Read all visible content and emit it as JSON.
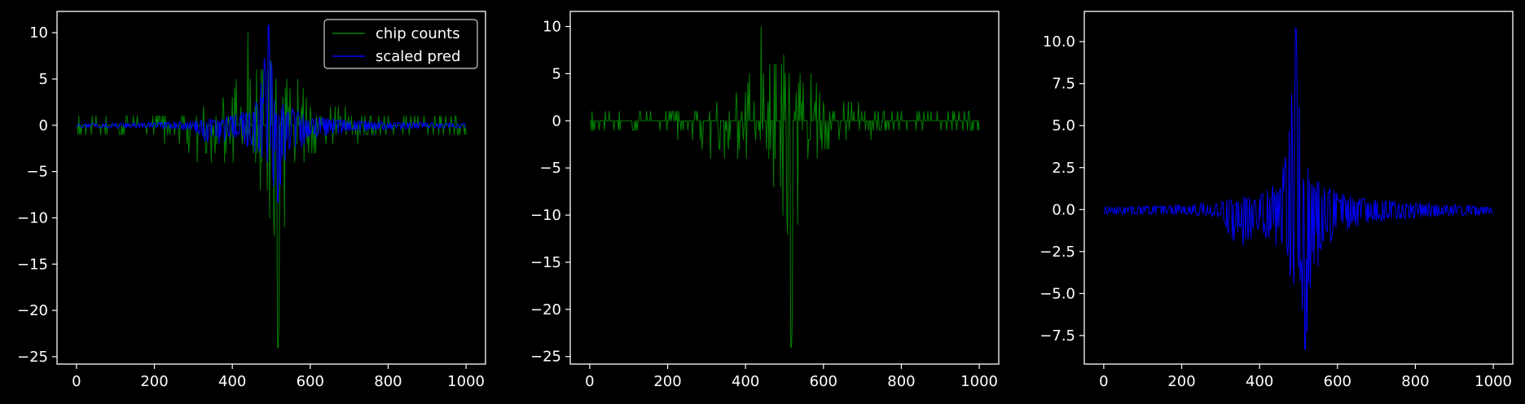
{
  "colors": {
    "background": "#000000",
    "axes": "#ffffff",
    "chip": "#008000",
    "pred": "#0000ff"
  },
  "chart_data": [
    {
      "type": "line",
      "xlim": [
        -50,
        1050
      ],
      "ylim": [
        -25.8,
        12.3
      ],
      "xticks": [
        0,
        200,
        400,
        600,
        800,
        1000
      ],
      "yticks": [
        -25,
        -20,
        -15,
        -10,
        -5,
        0,
        5,
        10
      ],
      "grid": false,
      "legend": {
        "placement": "top-right",
        "entries": [
          "chip counts",
          "scaled pred"
        ]
      },
      "series": [
        {
          "name": "chip counts",
          "color_key": "chip",
          "x_range": [
            0,
            1000
          ],
          "max": 10,
          "min": -24,
          "envelope": [
            {
              "x": 0,
              "y": 1
            },
            {
              "x": 100,
              "y": 1
            },
            {
              "x": 200,
              "y": 1
            },
            {
              "x": 260,
              "y": 3
            },
            {
              "x": 330,
              "y": 2
            },
            {
              "x": 400,
              "y": 4
            },
            {
              "x": 440,
              "y": 10
            },
            {
              "x": 470,
              "y": 8
            },
            {
              "x": 490,
              "y": 10
            },
            {
              "x": 510,
              "y": 6
            },
            {
              "x": 550,
              "y": 9
            },
            {
              "x": 600,
              "y": 3
            },
            {
              "x": 700,
              "y": 2
            },
            {
              "x": 800,
              "y": 1
            },
            {
              "x": 1000,
              "y": 1
            }
          ],
          "envelope_low": [
            {
              "x": 0,
              "y": -1
            },
            {
              "x": 100,
              "y": -1
            },
            {
              "x": 200,
              "y": -1
            },
            {
              "x": 280,
              "y": -3
            },
            {
              "x": 330,
              "y": -5
            },
            {
              "x": 400,
              "y": -4
            },
            {
              "x": 460,
              "y": -6
            },
            {
              "x": 490,
              "y": -8
            },
            {
              "x": 517,
              "y": -24
            },
            {
              "x": 540,
              "y": -7
            },
            {
              "x": 560,
              "y": -6
            },
            {
              "x": 600,
              "y": -3
            },
            {
              "x": 700,
              "y": -2
            },
            {
              "x": 800,
              "y": -1
            },
            {
              "x": 1000,
              "y": -1
            }
          ]
        },
        {
          "name": "scaled pred",
          "color_key": "pred",
          "x_range": [
            0,
            1000
          ],
          "max": 10.8,
          "min": -8.3,
          "envelope": [
            {
              "x": 0,
              "y": 0.2
            },
            {
              "x": 200,
              "y": 0.3
            },
            {
              "x": 300,
              "y": 0.5
            },
            {
              "x": 400,
              "y": 1.0
            },
            {
              "x": 440,
              "y": 2.0
            },
            {
              "x": 470,
              "y": 3.5
            },
            {
              "x": 493,
              "y": 10.8
            },
            {
              "x": 510,
              "y": 3.0
            },
            {
              "x": 550,
              "y": 2.0
            },
            {
              "x": 600,
              "y": 1.0
            },
            {
              "x": 700,
              "y": 0.6
            },
            {
              "x": 800,
              "y": 0.4
            },
            {
              "x": 1000,
              "y": 0.2
            }
          ],
          "envelope_low": [
            {
              "x": 0,
              "y": -0.3
            },
            {
              "x": 200,
              "y": -0.3
            },
            {
              "x": 300,
              "y": -0.5
            },
            {
              "x": 345,
              "y": -2.6
            },
            {
              "x": 400,
              "y": -1.2
            },
            {
              "x": 460,
              "y": -3.0
            },
            {
              "x": 495,
              "y": -5.0
            },
            {
              "x": 517,
              "y": -8.3
            },
            {
              "x": 540,
              "y": -4.0
            },
            {
              "x": 600,
              "y": -1.5
            },
            {
              "x": 700,
              "y": -0.8
            },
            {
              "x": 800,
              "y": -0.5
            },
            {
              "x": 1000,
              "y": -0.3
            }
          ]
        }
      ]
    },
    {
      "type": "line",
      "xlim": [
        -50,
        1050
      ],
      "ylim": [
        -25.8,
        11.6
      ],
      "xticks": [
        0,
        200,
        400,
        600,
        800,
        1000
      ],
      "yticks": [
        -25,
        -20,
        -15,
        -10,
        -5,
        0,
        5,
        10
      ],
      "grid": false,
      "series": [
        {
          "color_key": "chip",
          "x_range": [
            0,
            1000
          ],
          "max": 10,
          "min": -24,
          "envelope": [
            {
              "x": 0,
              "y": 1
            },
            {
              "x": 100,
              "y": 1
            },
            {
              "x": 200,
              "y": 1
            },
            {
              "x": 260,
              "y": 3
            },
            {
              "x": 330,
              "y": 2
            },
            {
              "x": 400,
              "y": 4
            },
            {
              "x": 440,
              "y": 10
            },
            {
              "x": 470,
              "y": 8
            },
            {
              "x": 490,
              "y": 10
            },
            {
              "x": 510,
              "y": 6
            },
            {
              "x": 550,
              "y": 9
            },
            {
              "x": 600,
              "y": 3
            },
            {
              "x": 700,
              "y": 2
            },
            {
              "x": 800,
              "y": 1
            },
            {
              "x": 1000,
              "y": 1
            }
          ],
          "envelope_low": [
            {
              "x": 0,
              "y": -1
            },
            {
              "x": 100,
              "y": -1
            },
            {
              "x": 200,
              "y": -1
            },
            {
              "x": 280,
              "y": -3
            },
            {
              "x": 330,
              "y": -5
            },
            {
              "x": 400,
              "y": -4
            },
            {
              "x": 460,
              "y": -6
            },
            {
              "x": 490,
              "y": -8
            },
            {
              "x": 517,
              "y": -24
            },
            {
              "x": 540,
              "y": -7
            },
            {
              "x": 560,
              "y": -6
            },
            {
              "x": 600,
              "y": -3
            },
            {
              "x": 700,
              "y": -2
            },
            {
              "x": 800,
              "y": -1
            },
            {
              "x": 1000,
              "y": -1
            }
          ]
        }
      ]
    },
    {
      "type": "line",
      "xlim": [
        -50,
        1050
      ],
      "ylim": [
        -9.2,
        11.8
      ],
      "xticks": [
        0,
        200,
        400,
        600,
        800,
        1000
      ],
      "yticks": [
        -7.5,
        -5.0,
        -2.5,
        0.0,
        2.5,
        5.0,
        7.5,
        10.0
      ],
      "ytick_labels": [
        "−7.5",
        "−5.0",
        "−2.5",
        "0.0",
        "2.5",
        "5.0",
        "7.5",
        "10.0"
      ],
      "grid": false,
      "series": [
        {
          "color_key": "pred",
          "x_range": [
            0,
            1000
          ],
          "max": 10.8,
          "min": -8.3,
          "envelope": [
            {
              "x": 0,
              "y": 0.2
            },
            {
              "x": 200,
              "y": 0.3
            },
            {
              "x": 300,
              "y": 0.5
            },
            {
              "x": 400,
              "y": 1.0
            },
            {
              "x": 440,
              "y": 2.0
            },
            {
              "x": 470,
              "y": 3.5
            },
            {
              "x": 493,
              "y": 10.8
            },
            {
              "x": 510,
              "y": 3.0
            },
            {
              "x": 550,
              "y": 2.0
            },
            {
              "x": 600,
              "y": 1.0
            },
            {
              "x": 700,
              "y": 0.6
            },
            {
              "x": 800,
              "y": 0.4
            },
            {
              "x": 1000,
              "y": 0.2
            }
          ],
          "envelope_low": [
            {
              "x": 0,
              "y": -0.3
            },
            {
              "x": 200,
              "y": -0.3
            },
            {
              "x": 300,
              "y": -0.5
            },
            {
              "x": 345,
              "y": -2.6
            },
            {
              "x": 400,
              "y": -1.2
            },
            {
              "x": 460,
              "y": -3.0
            },
            {
              "x": 495,
              "y": -5.0
            },
            {
              "x": 517,
              "y": -8.3
            },
            {
              "x": 540,
              "y": -4.0
            },
            {
              "x": 600,
              "y": -1.5
            },
            {
              "x": 700,
              "y": -0.8
            },
            {
              "x": 800,
              "y": -0.5
            },
            {
              "x": 1000,
              "y": -0.3
            }
          ]
        }
      ]
    }
  ]
}
